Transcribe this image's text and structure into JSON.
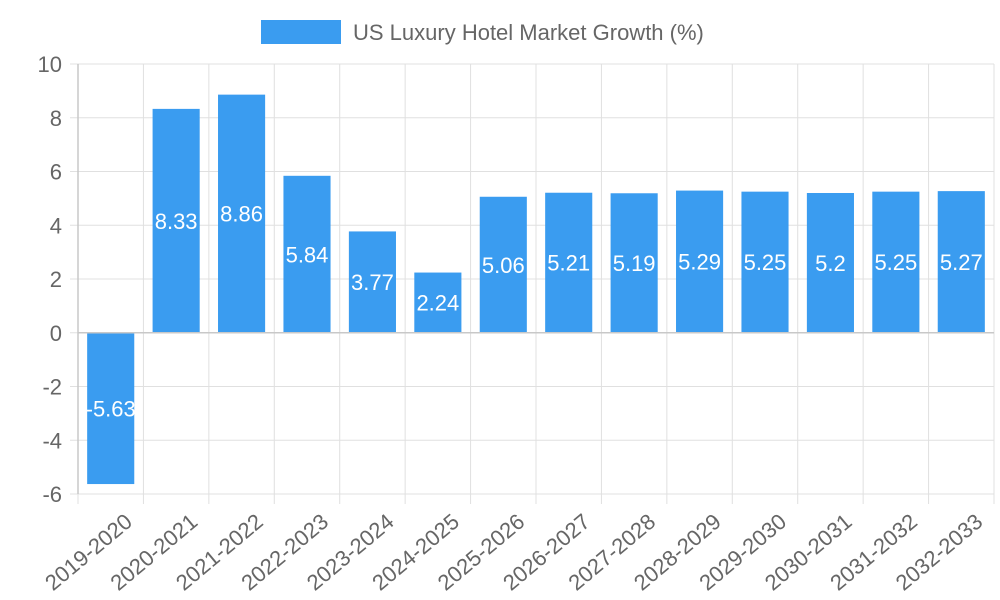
{
  "chart_data": {
    "type": "bar",
    "title": "",
    "legend": {
      "label": "US Luxury Hotel Market Growth (%)",
      "position": "top"
    },
    "xlabel": "",
    "ylabel": "",
    "ylim": [
      -6,
      10
    ],
    "yticks": [
      10,
      8,
      6,
      4,
      2,
      0,
      -2,
      -4,
      -6
    ],
    "grid": true,
    "categories": [
      "2019-2020",
      "2020-2021",
      "2021-2022",
      "2022-2023",
      "2023-2024",
      "2024-2025",
      "2025-2026",
      "2026-2027",
      "2027-2028",
      "2028-2029",
      "2029-2030",
      "2030-2031",
      "2031-2032",
      "2032-2033"
    ],
    "series": [
      {
        "name": "US Luxury Hotel Market Growth (%)",
        "values": [
          -5.63,
          8.33,
          8.86,
          5.84,
          3.77,
          2.24,
          5.06,
          5.21,
          5.19,
          5.29,
          5.25,
          5.2,
          5.25,
          5.27
        ],
        "labels": [
          "-5.63",
          "8.33",
          "8.86",
          "5.84",
          "3.77",
          "2.24",
          "5.06",
          "5.21",
          "5.19",
          "5.29",
          "5.25",
          "5.2",
          "5.25",
          "5.27"
        ]
      }
    ],
    "colors": {
      "bar": "#3a9cf0",
      "grid": "#e0e0e0",
      "axis": "#c8c8c8",
      "text": "#666666",
      "label": "#ffffff"
    }
  }
}
